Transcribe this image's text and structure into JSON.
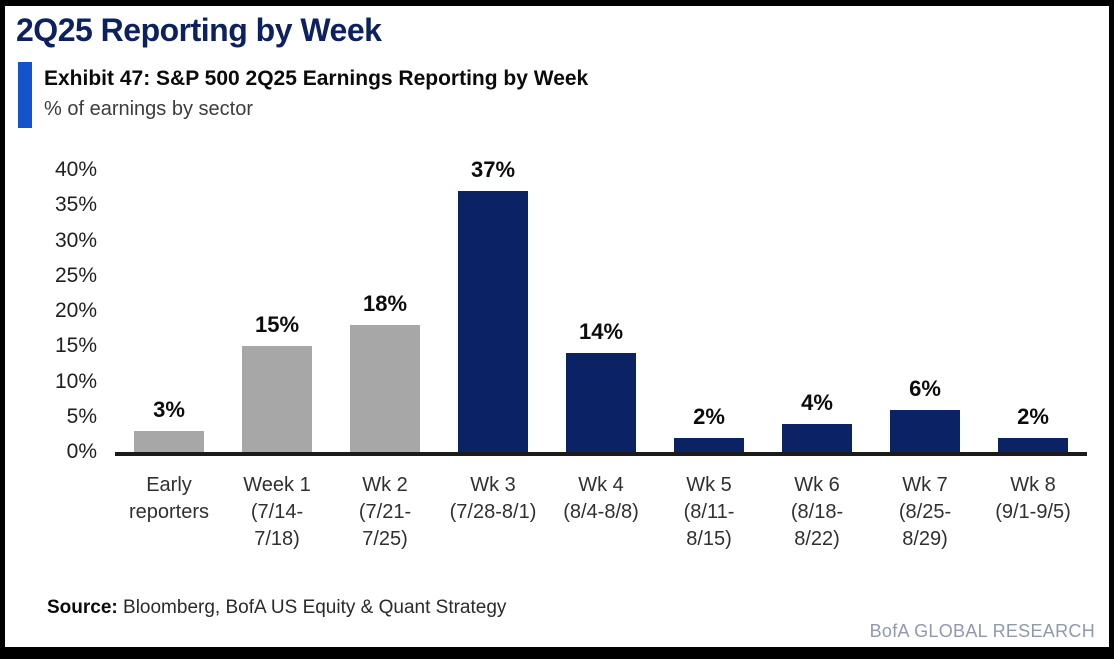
{
  "header": {
    "title": "2Q25 Reporting by Week",
    "exhibit_title": "Exhibit 47: S&P 500 2Q25 Earnings Reporting by Week",
    "subtitle": "% of earnings by sector"
  },
  "footer": {
    "source_label": "Source:",
    "source_text": "Bloomberg, BofA US Equity & Quant Strategy",
    "brand": "BofA GLOBAL RESEARCH"
  },
  "colors": {
    "accent_blue": "#1553cb",
    "title_navy": "#0d2161",
    "axis_line": "#1b1b1b",
    "brand_gray_blue": "#8e9aae"
  },
  "chart_data": {
    "type": "bar",
    "title": "S&P 500 2Q25 Earnings Reporting by Week",
    "ylabel": "% of earnings by sector",
    "xlabel": "",
    "unit": "%",
    "ylim": [
      0,
      40
    ],
    "ytick_step": 5,
    "grid": false,
    "legend": false,
    "data_labels": true,
    "categories": [
      "Early reporters",
      "Week 1 (7/14-7/18)",
      "Wk 2 (7/21-7/25)",
      "Wk 3 (7/28-8/1)",
      "Wk 4 (8/4-8/8)",
      "Wk 5 (8/11-8/15)",
      "Wk 6 (8/18-8/22)",
      "Wk 7 (8/25-8/29)",
      "Wk 8 (9/1-9/5)"
    ],
    "category_lines": [
      [
        "Early",
        "reporters"
      ],
      [
        "Week 1",
        "(7/14-",
        "7/18)"
      ],
      [
        "Wk 2",
        "(7/21-",
        "7/25)"
      ],
      [
        "Wk 3",
        "(7/28-8/1)"
      ],
      [
        "Wk 4",
        "(8/4-8/8)"
      ],
      [
        "Wk 5",
        "(8/11-",
        "8/15)"
      ],
      [
        "Wk 6",
        "(8/18-",
        "8/22)"
      ],
      [
        "Wk 7",
        "(8/25-",
        "8/29)"
      ],
      [
        "Wk 8",
        "(9/1-9/5)"
      ]
    ],
    "values": [
      3,
      15,
      18,
      37,
      14,
      2,
      4,
      6,
      2
    ],
    "value_labels": [
      "3%",
      "15%",
      "18%",
      "37%",
      "14%",
      "2%",
      "4%",
      "6%",
      "2%"
    ],
    "bar_colors": [
      "gray",
      "gray",
      "gray",
      "navy",
      "navy",
      "navy",
      "navy",
      "navy",
      "navy"
    ],
    "palette": {
      "gray": "#a7a7a7",
      "navy": "#0b2265"
    }
  }
}
